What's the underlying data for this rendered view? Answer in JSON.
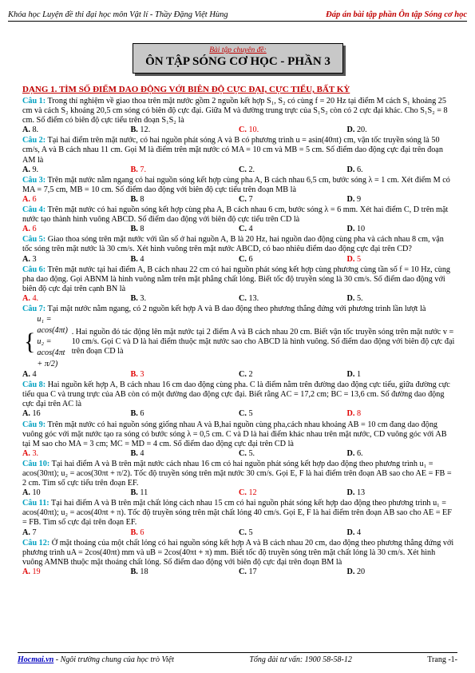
{
  "header": {
    "left": "Khóa học Luyện đề thi đại học môn Vật lí - Thầy Đặng Việt Hùng",
    "right": "Đáp án bài tập phần Ôn tập Sóng cơ học"
  },
  "title": {
    "sub": "Bài tập chuyên đề:",
    "main": "ÔN TẬP SÓNG CƠ HỌC - PHẦN 3"
  },
  "section": "DẠNG 1. TÌM SỐ ĐIỂM DAO ĐỘNG VỚI BIÊN ĐỘ CỰC ĐẠI, CỰC TIỂU, BẤT KỲ",
  "questions": [
    {
      "n": "Câu 1:",
      "t": " Trong thí nghiệm về giao thoa trên mặt nước gồm 2 nguồn kết hợp S₁, S₂ có cùng f = 20 Hz tại điểm M cách S₁ khoảng 25 cm và cách S₂ khoảng 20,5 cm sóng có biên độ cực đại. Giữa M và đường trung trực của S₁S₂ còn có 2 cực đại khác. Cho S₁S₂ = 8 cm. Số điểm có biên độ cực tiểu trên đoạn S₁S₂ là",
      "o": [
        "A. 8.",
        "B. 12.",
        "C. 10.",
        "D. 20."
      ]
    },
    {
      "n": "Câu 2:",
      "t": " Tại hai điểm trên mặt nước, có hai nguồn phát sóng A và B có phương trình u = asin(40πt) cm, vận tốc truyền sóng là 50 cm/s, A và B cách nhau 11 cm. Gọi M là điểm trên mặt nước có MA = 10 cm và MB = 5 cm. Số điểm dao động cực đại trên đoạn AM là",
      "o": [
        "A. 9.",
        "B. 7.",
        "C. 2.",
        "D. 6."
      ]
    },
    {
      "n": "Câu 3:",
      "t": " Trên mặt nước nằm ngang có hai nguồn sóng kết hợp cùng pha A, B cách nhau 6,5 cm, bước sóng λ = 1 cm. Xét điểm M có MA = 7,5 cm, MB = 10 cm. Số điểm dao động với biên độ cực tiểu trên đoạn MB là",
      "o": [
        "A. 6",
        "B. 8",
        "C. 7",
        "D. 9"
      ]
    },
    {
      "n": "Câu 4:",
      "t": " Trên mặt nước có hai nguồn sóng kết hợp cùng pha A, B cách nhau 6 cm, bước sóng λ = 6 mm. Xét hai điểm C, D trên mặt nước tạo thành hình vuông ABCD. Số điểm dao động với biên độ cực tiểu trên CD là",
      "o": [
        "A. 6",
        "B. 8",
        "C. 4",
        "D. 10"
      ]
    },
    {
      "n": "Câu 5:",
      "t": " Giao thoa sóng trên mặt nước với tần số ở hai nguồn A, B là 20 Hz, hai nguồn dao động cùng pha và cách nhau 8 cm, vận tốc sóng trên mặt nước là 30 cm/s. Xét hình vuông trên mặt nước ABCD, có bao nhiêu điểm dao động cực đại trên CD?",
      "o": [
        "A. 3",
        "B. 4",
        "C. 6",
        "D. 5"
      ]
    },
    {
      "n": "Câu 6:",
      "t": " Trên mặt nước tại hai điểm A, B cách nhau 22 cm có hai nguồn phát sóng kết hợp cùng phương cùng tần số f = 10 Hz, cùng pha dao động. Gọi ABNM là hình vuông nằm trên mặt phẳng chất lỏng. Biết tốc độ truyền sóng là 30 cm/s. Số điểm dao động với biên độ cực đại trên cạnh BN là",
      "o": [
        "A. 4.",
        "B. 3.",
        "C. 13.",
        "D. 5."
      ]
    },
    {
      "n": "Câu 7:",
      "t": " Tại mặt nước nằm ngang, có 2 nguồn kết hợp A và B dao động theo phương thẳng đứng với phương trình lần lượt là",
      "eq1": "u₁ = acos(4πt)",
      "eq2": "u₂ = acos(4πt + π/2)",
      "t2": ". Hai nguồn đó tác động lên mặt nước tại 2 điểm A và B cách nhau 20 cm. Biết vận tốc truyền sóng trên mặt nước v = 10 cm/s. Gọi C và D là hai điểm thuộc mặt nước sao cho ABCD là hình vuông. Số điểm dao động với biên độ cực đại trên đoạn CD là",
      "o": [
        "A. 4",
        "B. 3",
        "C. 2",
        "D. 1"
      ]
    },
    {
      "n": "Câu 8:",
      "t": " Hai nguồn kết hợp A, B cách nhau 16 cm dao động cùng pha. C là điểm nằm trên đường dao động cực tiểu, giữa đường cực tiểu qua C và trung trực của AB còn có một đường dao động cực đại. Biết rằng AC = 17,2 cm; BC = 13,6 cm. Số đường dao động cực đại trên AC là",
      "o": [
        "A. 16",
        "B. 6",
        "C. 5",
        "D. 8"
      ]
    },
    {
      "n": "Câu 9:",
      "t": " Trên mặt nước có hai nguồn sóng giống nhau A và B,hai nguồn cùng pha,cách nhau khoảng AB = 10 cm đang dao động vuông góc với mặt nước tạo ra sóng có bước sóng λ = 0,5 cm. C và D là hai điểm khác nhau trên mặt nước, CD vuông góc với AB tại M sao cho MA = 3 cm; MC = MD = 4 cm. Số điểm dao động cực đại trên CD là",
      "o": [
        "A. 3.",
        "B. 4",
        "C. 5.",
        "D. 6."
      ]
    },
    {
      "n": "Câu 10:",
      "t": " Tại hai điểm A và B trên mặt nước cách nhau 16 cm có hai nguồn phát sóng kết hợp dao động theo phương trình u₁ = acos(30πt); u₂ = acos(30πt + π/2). Tốc độ truyền sóng trên mặt nước 30 cm/s. Gọi E, F là hai điểm trên đoạn AB sao cho AE = FB = 2 cm. Tìm số cực tiểu trên đoạn EF.",
      "o": [
        "A. 10",
        "B. 11",
        "C. 12",
        "D. 13"
      ]
    },
    {
      "n": "Câu 11:",
      "t": " Tại hai điểm A và B trên mặt chất lỏng cách nhau 15 cm có hai nguồn phát sóng kết hợp dao động theo phương trình u₁ = acos(40πt); u₂ = acos(40πt + π). Tốc độ truyền sóng trên mặt chất lỏng 40 cm/s. Gọi E, F là hai điểm trên đoạn AB sao cho AE = EF = FB. Tìm số cực đại trên đoạn EF.",
      "o": [
        "A. 7",
        "B. 6",
        "C. 5",
        "D. 4"
      ]
    },
    {
      "n": "Câu 12:",
      "t": " Ở mặt thoáng của một chất lỏng có hai nguồn sóng kết hợp A và B cách nhau 20 cm, dao động theo phương thẳng đứng với phương trình uA = 2cos(40πt) mm và uB = 2cos(40πt + π) mm. Biết tốc độ truyền sóng trên mặt chất lỏng là 30 cm/s. Xét hình vuông AMNB thuộc mặt thoáng chất lỏng. Số điểm dao động với biên độ cực đại trên đoạn BM là",
      "o": [
        "A. 19",
        "B. 18",
        "C. 17",
        "D. 20"
      ]
    }
  ],
  "answers": [
    2,
    1,
    0,
    0,
    3,
    0,
    1,
    3,
    0,
    2,
    1,
    0
  ],
  "colors": {
    "answer": "#e00000",
    "question_number": "#00a0c0",
    "section": "#c00000"
  },
  "footer": {
    "site": "Hocmai.vn",
    "slogan": " - Ngôi trường chung của học trò Việt",
    "hotline": "Tổng đài tư vấn: 1900 58-58-12",
    "page": "Trang -1-"
  }
}
